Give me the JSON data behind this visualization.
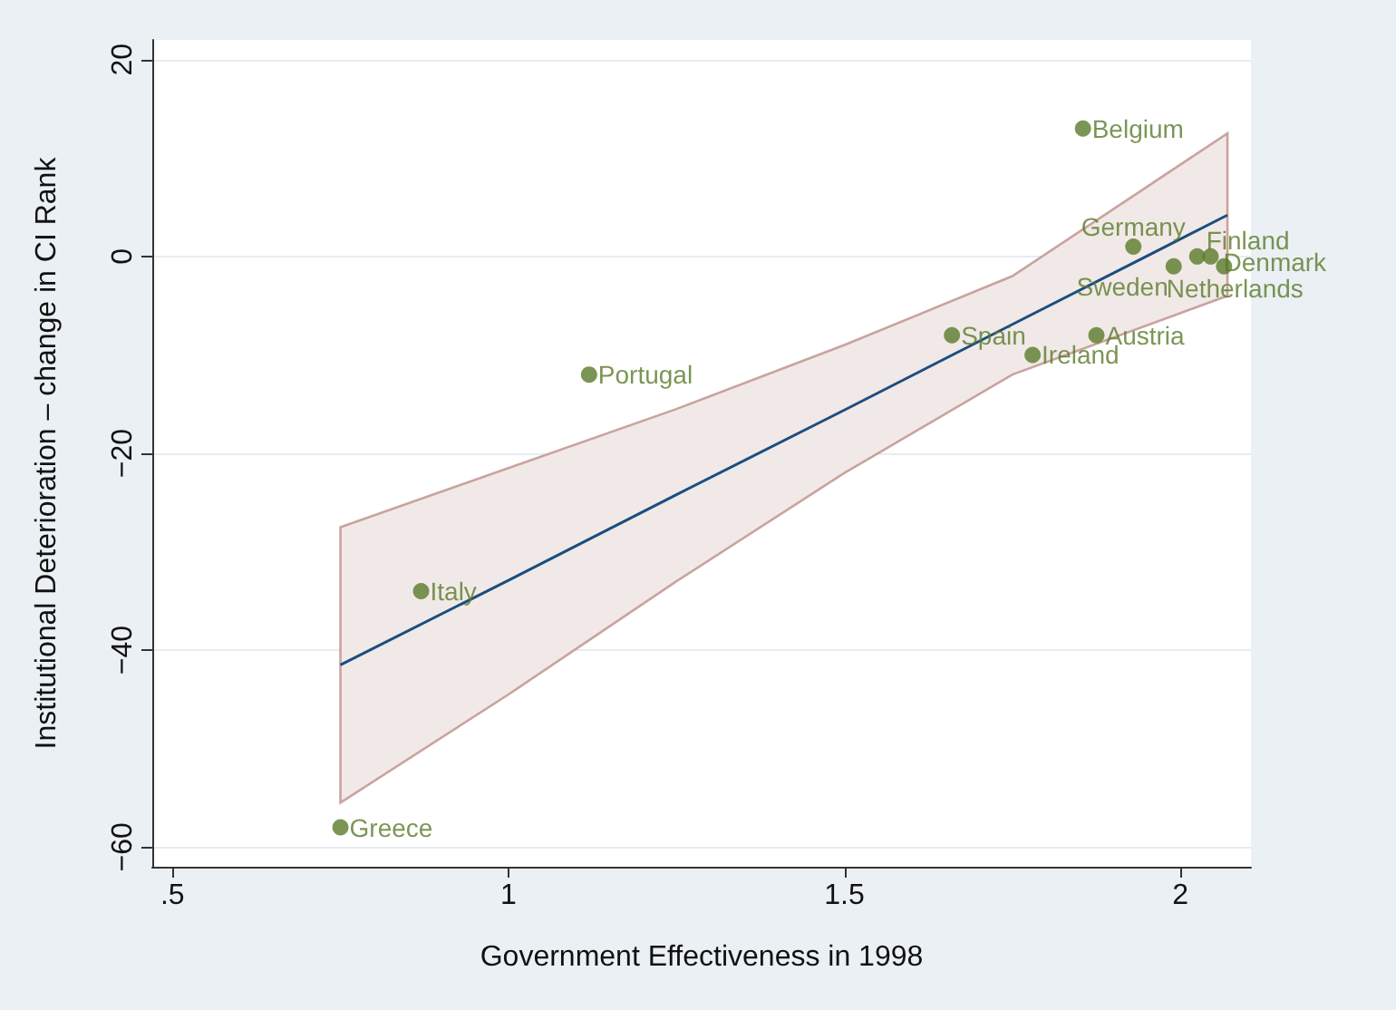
{
  "chart_data": {
    "type": "scatter",
    "xlabel": "Government Effectiveness in 1998",
    "ylabel": "Institutional Deterioration – change in CI Rank",
    "xlim": [
      0.47,
      2.105
    ],
    "xticks": [
      {
        "value": 0.5,
        "label": ".5"
      },
      1,
      1.5,
      2
    ],
    "ylim": [
      -62,
      22
    ],
    "yticks": [
      -60,
      -40,
      -20,
      0,
      20
    ],
    "grid": "y",
    "marker": "circle",
    "series": [
      {
        "color": "#5a7a2a",
        "x": [
          0.75,
          0.87,
          1.12,
          1.66,
          1.78,
          1.875,
          1.855,
          1.93,
          1.99,
          2.025,
          2.045,
          2.065
        ],
        "values": [
          -58,
          -34,
          -12,
          -8,
          -10,
          -8,
          13,
          1,
          -1,
          0,
          0,
          -1
        ]
      },
      {
        "type": "line",
        "color": "#1a4e80",
        "marker": "none",
        "x": [
          0.75,
          1.0,
          1.25,
          1.5,
          1.75,
          2.07
        ],
        "values": [
          -41.5,
          -32.9,
          -24.2,
          -15.6,
          -6.9,
          4.2
        ],
        "lower": [
          -55.5,
          -44.5,
          -33,
          -22,
          -12,
          -4
        ],
        "upper": [
          -27.5,
          -21.5,
          -15.5,
          -9,
          -2,
          12.5
        ]
      }
    ],
    "annotations": [
      {
        "text": "Greece",
        "x": 0.75,
        "y": -58
      },
      {
        "text": "Italy",
        "x": 0.87,
        "y": -34
      },
      {
        "text": "Portugal",
        "x": 1.12,
        "y": -12
      },
      {
        "text": "Spain",
        "x": 1.66,
        "y": -8
      },
      {
        "text": "Ireland",
        "x": 1.78,
        "y": -10
      },
      {
        "text": "Austria",
        "x": 1.875,
        "y": -8
      },
      {
        "text": "Belgium",
        "x": 1.855,
        "y": 13
      },
      {
        "text": "Germany",
        "x": 1.93,
        "y": 1
      },
      {
        "text": "Sweden",
        "x": 1.99,
        "y": -1
      },
      {
        "text": "Finland",
        "x": 2.025,
        "y": 0
      },
      {
        "text": "Denmark",
        "x": 2.045,
        "y": 0
      },
      {
        "text": "Netherlands",
        "x": 2.065,
        "y": -1
      }
    ]
  }
}
